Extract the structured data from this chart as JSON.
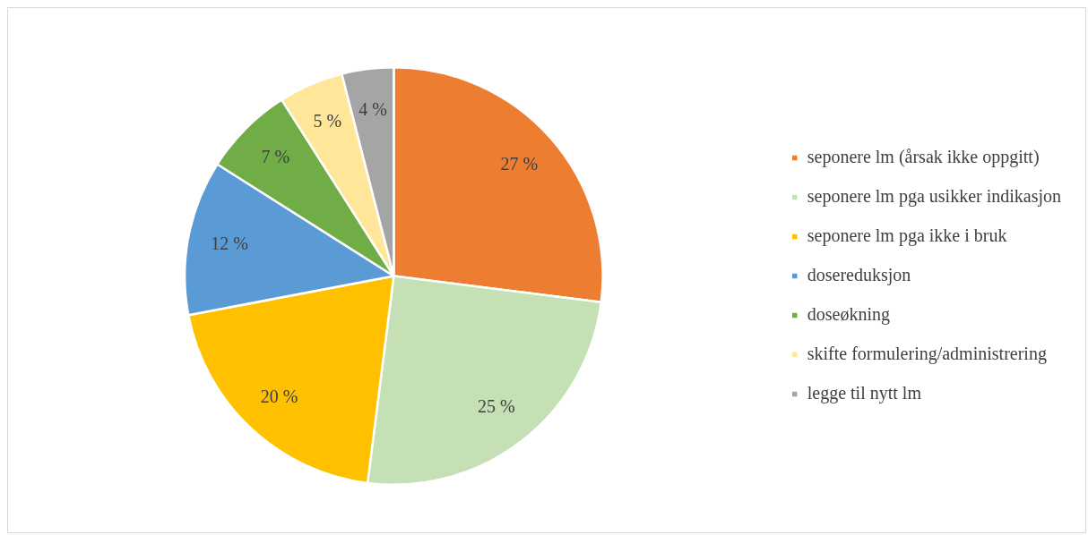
{
  "chart_data": {
    "type": "pie",
    "categories": [
      "seponere lm (årsak ikke oppgitt)",
      "seponere lm pga usikker indikasjon",
      "seponere lm pga ikke i bruk",
      "dosereduksjon",
      "doseøkning",
      "skifte formulering/administrering",
      "legge til nytt lm"
    ],
    "values": [
      27,
      25,
      20,
      12,
      7,
      5,
      4
    ],
    "colors": [
      "#ed7d31",
      "#c5e0b4",
      "#ffc000",
      "#5b9bd5",
      "#70ad47",
      "#ffe699",
      "#a5a5a5"
    ],
    "value_labels": [
      "27 %",
      "25 %",
      "20 %",
      "12 %",
      "7 %",
      "5 %",
      "4 %"
    ],
    "legend": "right"
  }
}
